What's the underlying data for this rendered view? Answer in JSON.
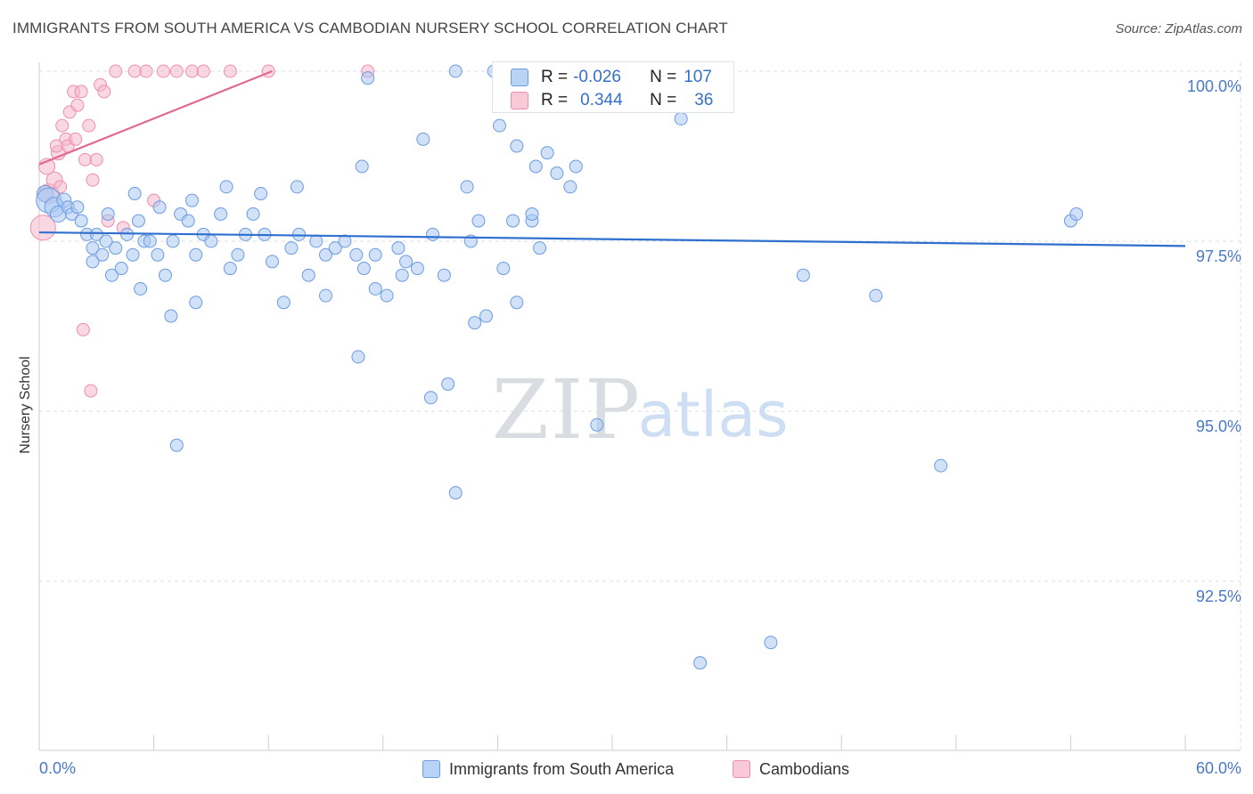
{
  "title": "IMMIGRANTS FROM SOUTH AMERICA VS CAMBODIAN NURSERY SCHOOL CORRELATION CHART",
  "source": "Source: ZipAtlas.com",
  "watermark": {
    "zip": "ZIP",
    "atlas": "atlas"
  },
  "colors": {
    "blue_fill": "#a9c8f3",
    "blue_stroke": "#6c9ce0",
    "blue_line": "#2f6fce",
    "pink_fill": "#f6b8cc",
    "pink_stroke": "#ec8fae",
    "pink_line": "#e06a92",
    "tick_label": "#4a78c9",
    "grid": "#d7dde5"
  },
  "stats": {
    "series1": {
      "r_label": "R =",
      "r_value": "-0.026",
      "n_label": "N =",
      "n_value": "107"
    },
    "series2": {
      "r_label": "R =",
      "r_value": "0.344",
      "n_label": "N =",
      "n_value": "36"
    }
  },
  "chart_data": {
    "type": "scatter",
    "title": "IMMIGRANTS FROM SOUTH AMERICA VS CAMBODIAN NURSERY SCHOOL CORRELATION CHART",
    "xlabel": "",
    "ylabel": "Nursery School",
    "xlim": [
      0,
      60
    ],
    "ylim": [
      90.0,
      100.4
    ],
    "x_tick_labels": [
      "0.0%",
      "60.0%"
    ],
    "y_ticks": [
      92.5,
      95.0,
      97.5,
      100.0
    ],
    "y_tick_labels": [
      "92.5%",
      "95.0%",
      "97.5%",
      "100.0%"
    ],
    "grid": true,
    "legend_position": "bottom",
    "series": [
      {
        "name": "Immigrants from South America",
        "trend": [
          [
            0,
            97.63
          ],
          [
            60,
            97.43
          ]
        ],
        "points": [
          [
            0.3,
            98.2,
            9
          ],
          [
            0.5,
            98.1,
            14
          ],
          [
            0.8,
            98.0,
            11
          ],
          [
            1.0,
            97.9,
            9
          ],
          [
            1.3,
            98.1,
            8
          ],
          [
            1.5,
            98.0,
            7
          ],
          [
            1.7,
            97.9,
            7
          ],
          [
            2.0,
            98.0,
            7
          ],
          [
            2.2,
            97.8,
            7
          ],
          [
            2.5,
            97.6,
            7
          ],
          [
            2.8,
            97.4,
            7
          ],
          [
            3.0,
            97.6,
            7
          ],
          [
            3.3,
            97.3,
            7
          ],
          [
            3.5,
            97.5,
            7
          ],
          [
            3.8,
            97.0,
            7
          ],
          [
            4.0,
            97.4,
            7
          ],
          [
            4.3,
            97.1,
            7
          ],
          [
            4.6,
            97.6,
            7
          ],
          [
            4.9,
            97.3,
            7
          ],
          [
            5.2,
            97.8,
            7
          ],
          [
            5.5,
            97.5,
            7
          ],
          [
            5.8,
            97.5,
            7
          ],
          [
            6.2,
            97.3,
            7
          ],
          [
            6.6,
            97.0,
            7
          ],
          [
            7.0,
            97.5,
            7
          ],
          [
            7.4,
            97.9,
            7
          ],
          [
            7.8,
            97.8,
            7
          ],
          [
            8.2,
            97.3,
            7
          ],
          [
            8.6,
            97.6,
            7
          ],
          [
            9.0,
            97.5,
            7
          ],
          [
            9.5,
            97.9,
            7
          ],
          [
            10.0,
            97.1,
            7
          ],
          [
            10.4,
            97.3,
            7
          ],
          [
            10.8,
            97.6,
            7
          ],
          [
            11.2,
            97.9,
            7
          ],
          [
            11.8,
            97.6,
            7
          ],
          [
            12.2,
            97.2,
            7
          ],
          [
            12.8,
            96.6,
            7
          ],
          [
            13.2,
            97.4,
            7
          ],
          [
            13.6,
            97.6,
            7
          ],
          [
            14.1,
            97.0,
            7
          ],
          [
            14.5,
            97.5,
            7
          ],
          [
            15.0,
            97.3,
            7
          ],
          [
            15.5,
            97.4,
            7
          ],
          [
            16.0,
            97.5,
            7
          ],
          [
            16.6,
            97.3,
            7
          ],
          [
            17.0,
            97.1,
            7
          ],
          [
            17.6,
            97.3,
            7
          ],
          [
            18.2,
            96.7,
            7
          ],
          [
            18.8,
            97.4,
            7
          ],
          [
            19.2,
            97.2,
            7
          ],
          [
            19.8,
            97.1,
            7
          ],
          [
            20.6,
            97.6,
            7
          ],
          [
            21.2,
            97.0,
            7
          ],
          [
            22.6,
            97.5,
            7
          ],
          [
            23.4,
            96.4,
            7
          ],
          [
            23.0,
            97.8,
            7
          ],
          [
            25.0,
            96.6,
            7
          ],
          [
            25.8,
            97.8,
            7
          ],
          [
            26.2,
            97.4,
            7
          ],
          [
            7.2,
            94.5,
            7
          ],
          [
            16.7,
            95.8,
            7
          ],
          [
            20.5,
            95.2,
            7
          ],
          [
            21.4,
            95.4,
            7
          ],
          [
            21.8,
            93.8,
            7
          ],
          [
            29.2,
            94.8,
            7
          ],
          [
            34.6,
            91.3,
            7
          ],
          [
            38.3,
            91.6,
            7
          ],
          [
            40.0,
            97.0,
            7
          ],
          [
            43.8,
            96.7,
            7
          ],
          [
            47.2,
            94.2,
            7
          ],
          [
            54.0,
            97.8,
            7
          ],
          [
            54.3,
            97.9,
            7
          ],
          [
            16.9,
            98.6,
            7
          ],
          [
            17.2,
            99.9,
            7
          ],
          [
            20.1,
            99.0,
            7
          ],
          [
            21.8,
            100.0,
            7
          ],
          [
            22.4,
            98.3,
            7
          ],
          [
            23.8,
            100.0,
            7
          ],
          [
            24.1,
            99.2,
            7
          ],
          [
            25.0,
            98.9,
            7
          ],
          [
            26.0,
            98.6,
            7
          ],
          [
            26.6,
            98.8,
            7
          ],
          [
            27.1,
            98.5,
            7
          ],
          [
            27.4,
            100.0,
            7
          ],
          [
            27.8,
            98.3,
            7
          ],
          [
            28.1,
            98.6,
            7
          ],
          [
            28.6,
            99.5,
            7
          ],
          [
            32.4,
            99.8,
            7
          ],
          [
            33.6,
            99.3,
            7
          ],
          [
            34.0,
            100.0,
            7
          ],
          [
            35.6,
            99.6,
            7
          ],
          [
            30.1,
            99.5,
            7
          ],
          [
            25.8,
            97.9,
            7
          ],
          [
            24.8,
            97.8,
            7
          ],
          [
            13.5,
            98.3,
            7
          ],
          [
            11.6,
            98.2,
            7
          ],
          [
            9.8,
            98.3,
            7
          ],
          [
            8.0,
            98.1,
            7
          ],
          [
            6.3,
            98.0,
            7
          ],
          [
            5.0,
            98.2,
            7
          ],
          [
            3.6,
            97.9,
            7
          ],
          [
            2.8,
            97.2,
            7
          ],
          [
            5.3,
            96.8,
            7
          ],
          [
            6.9,
            96.4,
            7
          ],
          [
            8.2,
            96.6,
            7
          ],
          [
            15.0,
            96.7,
            7
          ],
          [
            17.6,
            96.8,
            7
          ],
          [
            19.0,
            97.0,
            7
          ],
          [
            22.8,
            96.3,
            7
          ],
          [
            24.3,
            97.1,
            7
          ]
        ]
      },
      {
        "name": "Cambodians",
        "trend": [
          [
            0,
            98.63
          ],
          [
            12.2,
            100.0
          ]
        ],
        "points": [
          [
            0.2,
            97.7,
            14
          ],
          [
            0.5,
            98.2,
            11
          ],
          [
            0.8,
            98.4,
            9
          ],
          [
            1.0,
            98.8,
            8
          ],
          [
            1.2,
            99.2,
            7
          ],
          [
            1.4,
            99.0,
            7
          ],
          [
            1.6,
            99.4,
            7
          ],
          [
            1.8,
            99.7,
            7
          ],
          [
            2.0,
            99.5,
            7
          ],
          [
            2.2,
            99.7,
            7
          ],
          [
            2.4,
            98.7,
            7
          ],
          [
            2.6,
            99.2,
            7
          ],
          [
            2.8,
            98.4,
            7
          ],
          [
            3.0,
            98.7,
            7
          ],
          [
            3.2,
            99.8,
            7
          ],
          [
            3.4,
            99.7,
            7
          ],
          [
            3.6,
            97.8,
            7
          ],
          [
            4.0,
            100.0,
            7
          ],
          [
            4.4,
            97.7,
            7
          ],
          [
            5.0,
            100.0,
            7
          ],
          [
            5.6,
            100.0,
            7
          ],
          [
            6.0,
            98.1,
            7
          ],
          [
            6.5,
            100.0,
            7
          ],
          [
            7.2,
            100.0,
            7
          ],
          [
            8.0,
            100.0,
            7
          ],
          [
            8.6,
            100.0,
            7
          ],
          [
            10.0,
            100.0,
            7
          ],
          [
            12.0,
            100.0,
            7
          ],
          [
            2.3,
            96.2,
            7
          ],
          [
            2.7,
            95.3,
            7
          ],
          [
            0.9,
            98.9,
            7
          ],
          [
            1.1,
            98.3,
            7
          ],
          [
            1.5,
            98.9,
            7
          ],
          [
            1.9,
            99.0,
            7
          ],
          [
            0.4,
            98.6,
            9
          ],
          [
            17.2,
            100.0,
            7
          ]
        ]
      }
    ]
  },
  "legend": {
    "series1": "Immigrants from South America",
    "series2": "Cambodians"
  }
}
